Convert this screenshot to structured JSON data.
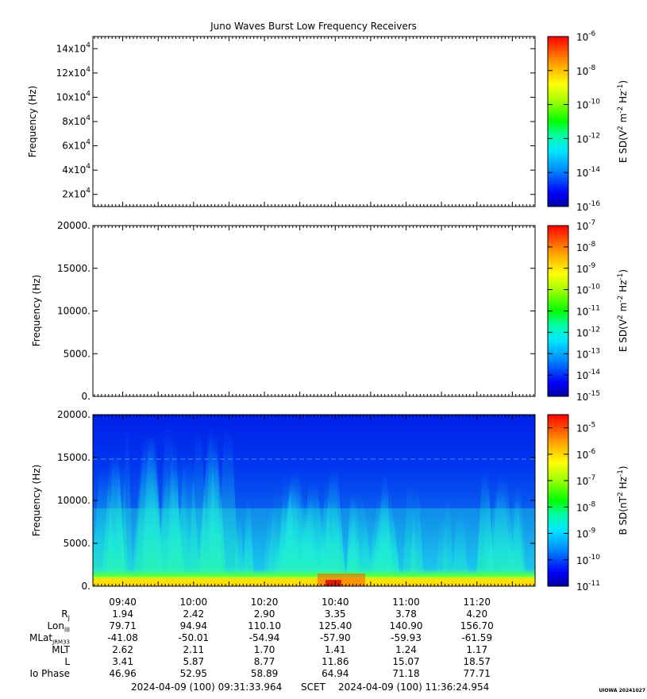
{
  "chart_data": [
    {
      "type": "heatmap",
      "title": "Juno Waves Burst Low Frequency Receivers",
      "ylabel": "Frequency (Hz)",
      "y_ticks": [
        "2x10^4",
        "4x10^4",
        "6x10^4",
        "8x10^4",
        "10x10^4",
        "12x10^4",
        "14x10^4"
      ],
      "ylim": [
        10000,
        150000
      ],
      "colorbar_label": "E SD(V^2 m^-2 Hz^-1)",
      "colorbar_ticks": [
        "10^-6",
        "10^-8",
        "10^-10",
        "10^-12",
        "10^-14",
        "10^-16"
      ],
      "clim_log10": [
        -16,
        -6
      ],
      "has_data": false
    },
    {
      "type": "heatmap",
      "ylabel": "Frequency (Hz)",
      "y_ticks": [
        "20000.",
        "15000.",
        "10000.",
        "5000.",
        "0."
      ],
      "ylim": [
        0,
        20000
      ],
      "colorbar_label": "E SD(V^2 m^-2 Hz^-1)",
      "colorbar_ticks": [
        "10^-7",
        "10^-8",
        "10^-9",
        "10^-10",
        "10^-11",
        "10^-12",
        "10^-13",
        "10^-14",
        "10^-15"
      ],
      "clim_log10": [
        -15,
        -7
      ],
      "has_data": false
    },
    {
      "type": "heatmap",
      "ylabel": "Frequency (Hz)",
      "y_ticks": [
        "20000.",
        "15000.",
        "10000.",
        "5000.",
        "0."
      ],
      "ylim": [
        0,
        20000
      ],
      "colorbar_label": "B SD(nT^2 Hz^-1)",
      "colorbar_ticks": [
        "10^-5",
        "10^-6",
        "10^-7",
        "10^-8",
        "10^-9",
        "10^-10",
        "10^-11"
      ],
      "clim_log10": [
        -11,
        -4.5
      ],
      "has_data": true,
      "description_of_intensity": "broadband emission below ~20000 Hz, strongest (yellow-red) below ~1000 Hz, green-cyan bursts up to ~15000 Hz between 09:35 and 11:35"
    }
  ],
  "x_axis": {
    "time_ticks": [
      "09:40",
      "10:00",
      "10:20",
      "10:40",
      "11:00",
      "11:20"
    ],
    "start_minutes": 571.57,
    "end_minutes": 696.42
  },
  "ephemeris": {
    "labels": [
      "R",
      "Lon",
      "MLat",
      "MLT",
      "L",
      "Io Phase"
    ],
    "label_subscripts": [
      "J",
      "III",
      "JRM33",
      "",
      "",
      ""
    ],
    "rows": [
      [
        "1.94",
        "2.42",
        "2.90",
        "3.35",
        "3.78",
        "4.20"
      ],
      [
        "79.71",
        "94.94",
        "110.10",
        "125.40",
        "140.90",
        "156.70"
      ],
      [
        "-41.08",
        "-50.01",
        "-54.94",
        "-57.90",
        "-59.93",
        "-61.59"
      ],
      [
        "2.62",
        "2.11",
        "1.70",
        "1.41",
        "1.24",
        "1.17"
      ],
      [
        "3.41",
        "5.87",
        "8.77",
        "11.86",
        "15.07",
        "18.57"
      ],
      [
        "46.96",
        "52.95",
        "58.89",
        "64.94",
        "71.18",
        "77.71"
      ]
    ]
  },
  "footer": {
    "start": "2024-04-09 (100) 09:31:33.964",
    "scet": "SCET",
    "end": "2024-04-09 (100) 11:36:24.954"
  },
  "credit": "UIOWA 20241027"
}
